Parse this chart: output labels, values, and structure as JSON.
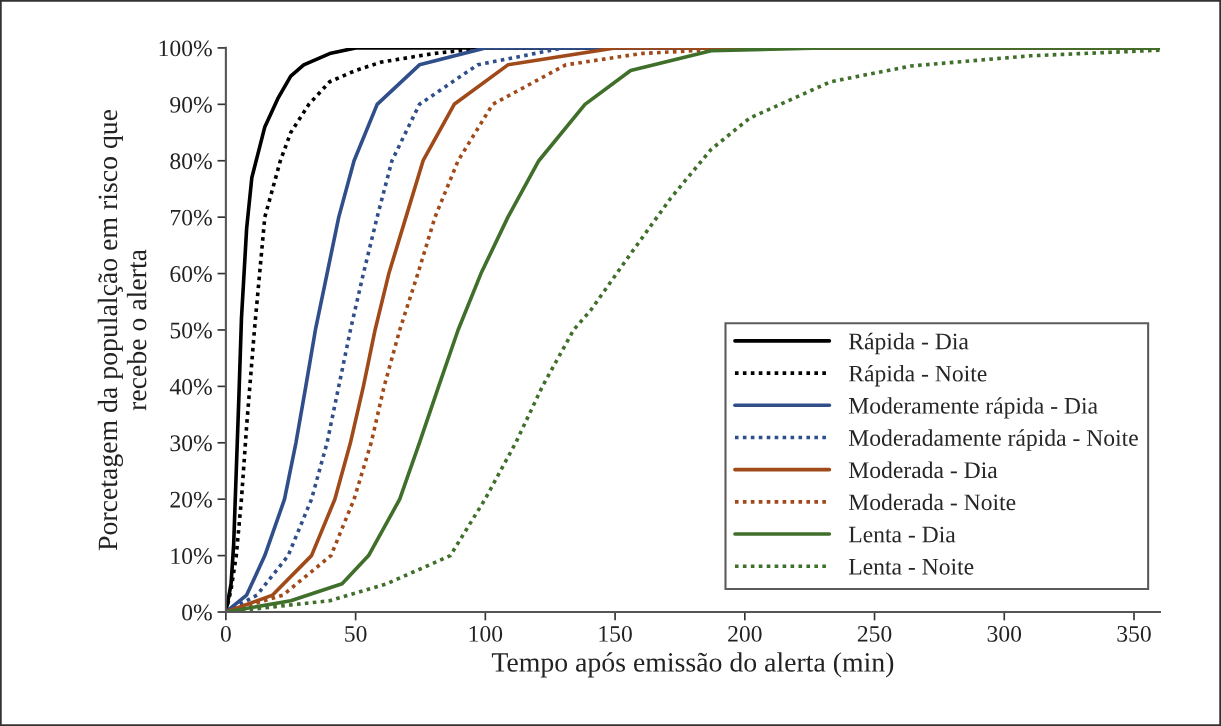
{
  "chart_data": {
    "type": "line",
    "xlabel": "Tempo após emissão do alerta (min)",
    "ylabel": "Porcetagem da populalção em risco que\nrecebe o alerta",
    "xlim": [
      0,
      360
    ],
    "xticks": [
      0,
      50,
      100,
      150,
      200,
      250,
      300,
      350
    ],
    "ylim": [
      0,
      100
    ],
    "yticks": [
      {
        "value": 0,
        "label": "0%"
      },
      {
        "value": 10,
        "label": "10%"
      },
      {
        "value": 20,
        "label": "20%"
      },
      {
        "value": 30,
        "label": "30%"
      },
      {
        "value": 40,
        "label": "40%"
      },
      {
        "value": 50,
        "label": "50%"
      },
      {
        "value": 60,
        "label": "60%"
      },
      {
        "value": 70,
        "label": "70%"
      },
      {
        "value": 80,
        "label": "80%"
      },
      {
        "value": 90,
        "label": "90%"
      },
      {
        "value": 100,
        "label": "100%"
      }
    ],
    "grid": false,
    "legend": "bottom right",
    "marker": "none",
    "series": [
      {
        "name": "Rápida - Dia",
        "color": "#000000",
        "line_style": "solid",
        "x": [
          0,
          2,
          3,
          4,
          5,
          6,
          8,
          10,
          15,
          20,
          25,
          30,
          40,
          50,
          360
        ],
        "values": [
          0,
          5,
          12,
          25,
          38,
          52,
          68,
          77,
          86,
          91,
          95,
          97,
          99,
          100,
          100
        ]
      },
      {
        "name": "Rápida - Noite",
        "color": "#000000",
        "line_style": "dotted",
        "x": [
          0,
          2,
          4,
          6,
          8,
          11,
          15,
          21,
          25,
          32,
          40,
          50,
          60,
          80,
          100,
          360
        ],
        "values": [
          0,
          4,
          10,
          20,
          33,
          50,
          70,
          80,
          85,
          90,
          94,
          96,
          97.5,
          99,
          100,
          100
        ]
      },
      {
        "name": "Moderamente rápida - Dia",
        "color": "#2f4e8a",
        "line_style": "solid",
        "x": [
          0,
          8,
          15,
          22.6,
          27,
          30.8,
          34.5,
          39,
          43.5,
          49.4,
          58.3,
          74.6,
          100,
          360
        ],
        "values": [
          0,
          3,
          10,
          20,
          30,
          40,
          50,
          60,
          70,
          80,
          90,
          97,
          100,
          100
        ]
      },
      {
        "name": "Moderadamente rápida - Noite",
        "color": "#2f4e8a",
        "line_style": "dotted",
        "x": [
          0,
          12,
          24,
          33,
          39,
          43.5,
          48,
          53,
          58.3,
          64,
          74.6,
          97,
          130,
          360
        ],
        "values": [
          0,
          3,
          10,
          20,
          30,
          40,
          50,
          60,
          70,
          80,
          90,
          97,
          100,
          100
        ]
      },
      {
        "name": "Moderada - Dia",
        "color": "#a04a1a",
        "line_style": "solid",
        "x": [
          0,
          18,
          33,
          42,
          48,
          53,
          57.5,
          62.8,
          69.4,
          76,
          88,
          108.7,
          150,
          360
        ],
        "values": [
          0,
          3,
          10,
          20,
          30,
          40,
          50,
          60,
          70,
          80,
          90,
          97,
          100,
          100
        ]
      },
      {
        "name": "Moderada - Noite",
        "color": "#a04a1a",
        "line_style": "dotted",
        "x": [
          0,
          22,
          40.5,
          49.4,
          56,
          61,
          67,
          74,
          80.6,
          89.5,
          102.8,
          131,
          160,
          200,
          360
        ],
        "values": [
          0,
          3,
          10,
          20,
          30,
          40,
          50,
          60,
          70,
          80,
          90,
          97,
          99,
          100,
          100
        ]
      },
      {
        "name": "Lenta - Dia",
        "color": "#3f6f2a",
        "line_style": "solid",
        "x": [
          0,
          25,
          44.8,
          55,
          67,
          74.6,
          82,
          89.5,
          98.3,
          108.7,
          120.6,
          138.4,
          156,
          187,
          230,
          360
        ],
        "values": [
          0,
          2,
          5,
          10,
          20,
          30,
          40,
          50,
          60,
          70,
          80,
          90,
          96,
          99.5,
          100,
          100
        ]
      },
      {
        "name": "Lenta - Noite",
        "color": "#3f6f2a",
        "line_style": "dotted",
        "x": [
          0,
          40,
          62,
          86.5,
          99.9,
          111.7,
          122,
          134,
          140.6,
          156,
          171.5,
          187,
          202,
          233,
          264,
          310,
          360
        ],
        "values": [
          0,
          2,
          5,
          10,
          20,
          30,
          40,
          50,
          53.5,
          63.5,
          73.4,
          82,
          87.6,
          94,
          96.8,
          98.6,
          99.6
        ]
      }
    ]
  }
}
